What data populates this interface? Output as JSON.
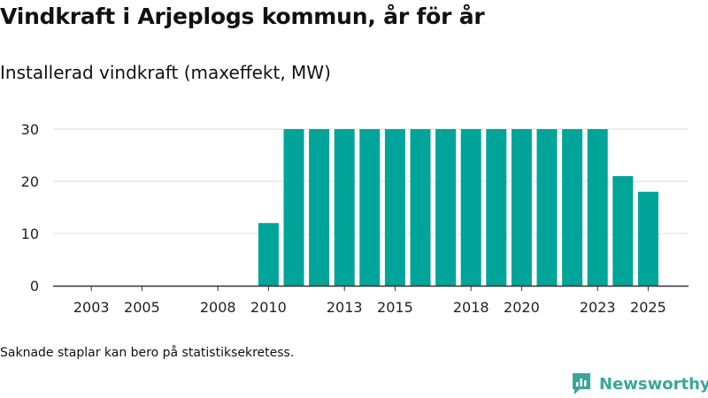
{
  "header": {
    "title": "Vindkraft i Arjeplogs kommun, år för år",
    "subtitle": "Installerad vindkraft (maxeffekt, MW)"
  },
  "footer": {
    "note": "Saknade staplar kan bero på statistiksekretess.",
    "brand": "Newsworthy"
  },
  "colors": {
    "bar": "#00a499",
    "brand": "#3aa69a",
    "grid": "#dddddd",
    "axis": "#333333"
  },
  "chart_data": {
    "type": "bar",
    "categories": [
      "2003",
      "2004",
      "2005",
      "2006",
      "2007",
      "2008",
      "2009",
      "2010",
      "2011",
      "2012",
      "2013",
      "2014",
      "2015",
      "2016",
      "2017",
      "2018",
      "2019",
      "2020",
      "2021",
      "2022",
      "2023",
      "2024",
      "2025"
    ],
    "values": [
      0,
      0,
      0,
      0,
      0,
      0,
      0,
      12,
      30,
      30,
      30,
      30,
      30,
      30,
      30,
      30,
      30,
      30,
      30,
      30,
      30,
      21,
      18
    ],
    "tick_labels": [
      "2003",
      "2005",
      "2008",
      "2010",
      "2013",
      "2015",
      "2018",
      "2020",
      "2023",
      "2025"
    ],
    "y_ticks": [
      0,
      10,
      20,
      30
    ],
    "ylim": [
      0,
      30
    ],
    "grid": true,
    "legend": "none",
    "xlabel": "",
    "ylabel": ""
  }
}
